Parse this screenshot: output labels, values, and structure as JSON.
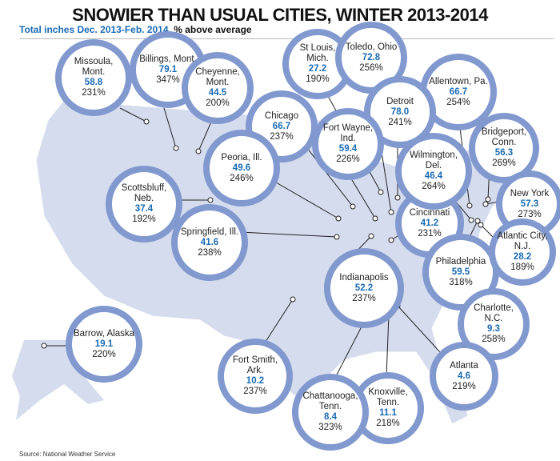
{
  "title": "SNOWIER THAN USUAL CITIES, WINTER 2013-2014",
  "subtitle_blue": "Total inches Dec. 2013-Feb. 2014",
  "subtitle_rest": ", % above average",
  "source": "Source: National Weather Service",
  "colors": {
    "ring": "#8199cf",
    "land": "#d5dcee",
    "value": "#1a6bb5"
  },
  "cities": [
    {
      "name": "Missoula, Mont.",
      "inches": "58.8",
      "pct": "231%"
    },
    {
      "name": "Billings, Mont.",
      "inches": "79.1",
      "pct": "347%"
    },
    {
      "name": "Cheyenne, Mont.",
      "inches": "44.5",
      "pct": "200%"
    },
    {
      "name": "St Louis, Mich.",
      "inches": "27.2",
      "pct": "190%"
    },
    {
      "name": "Toledo, Ohio",
      "inches": "72.8",
      "pct": "256%"
    },
    {
      "name": "Allentown, Pa.",
      "inches": "66.7",
      "pct": "254%"
    },
    {
      "name": "Chicago",
      "inches": "66.7",
      "pct": "237%"
    },
    {
      "name": "Detroit",
      "inches": "78.0",
      "pct": "241%"
    },
    {
      "name": "Fort Wayne, Ind.",
      "inches": "59.4",
      "pct": "226%"
    },
    {
      "name": "Bridgeport, Conn.",
      "inches": "56.3",
      "pct": "269%"
    },
    {
      "name": "Peoria, Ill.",
      "inches": "49.6",
      "pct": "246%"
    },
    {
      "name": "Wilmington, Del.",
      "inches": "46.4",
      "pct": "264%"
    },
    {
      "name": "Scottsbluff, Neb.",
      "inches": "37.4",
      "pct": "192%"
    },
    {
      "name": "New York",
      "inches": "57.3",
      "pct": "273%"
    },
    {
      "name": "Cincinnati",
      "inches": "41.2",
      "pct": "231%"
    },
    {
      "name": "Springfield, Ill.",
      "inches": "41.6",
      "pct": "238%"
    },
    {
      "name": "Philadelphia",
      "inches": "59.5",
      "pct": "318%"
    },
    {
      "name": "Atlantic City, N.J.",
      "inches": "28.2",
      "pct": "189%"
    },
    {
      "name": "Charlotte, N.C.",
      "inches": "9.3",
      "pct": "258%"
    },
    {
      "name": "Indianapolis",
      "inches": "52.2",
      "pct": "237%"
    },
    {
      "name": "Fort Smith, Ark.",
      "inches": "10.2",
      "pct": "237%"
    },
    {
      "name": "Barrow, Alaska",
      "inches": "19.1",
      "pct": "220%"
    },
    {
      "name": "Atlanta",
      "inches": "4.6",
      "pct": "219%"
    },
    {
      "name": "Knoxville, Tenn.",
      "inches": "11.1",
      "pct": "218%"
    },
    {
      "name": "Chattanooga, Tenn.",
      "inches": "8.4",
      "pct": "323%"
    }
  ]
}
